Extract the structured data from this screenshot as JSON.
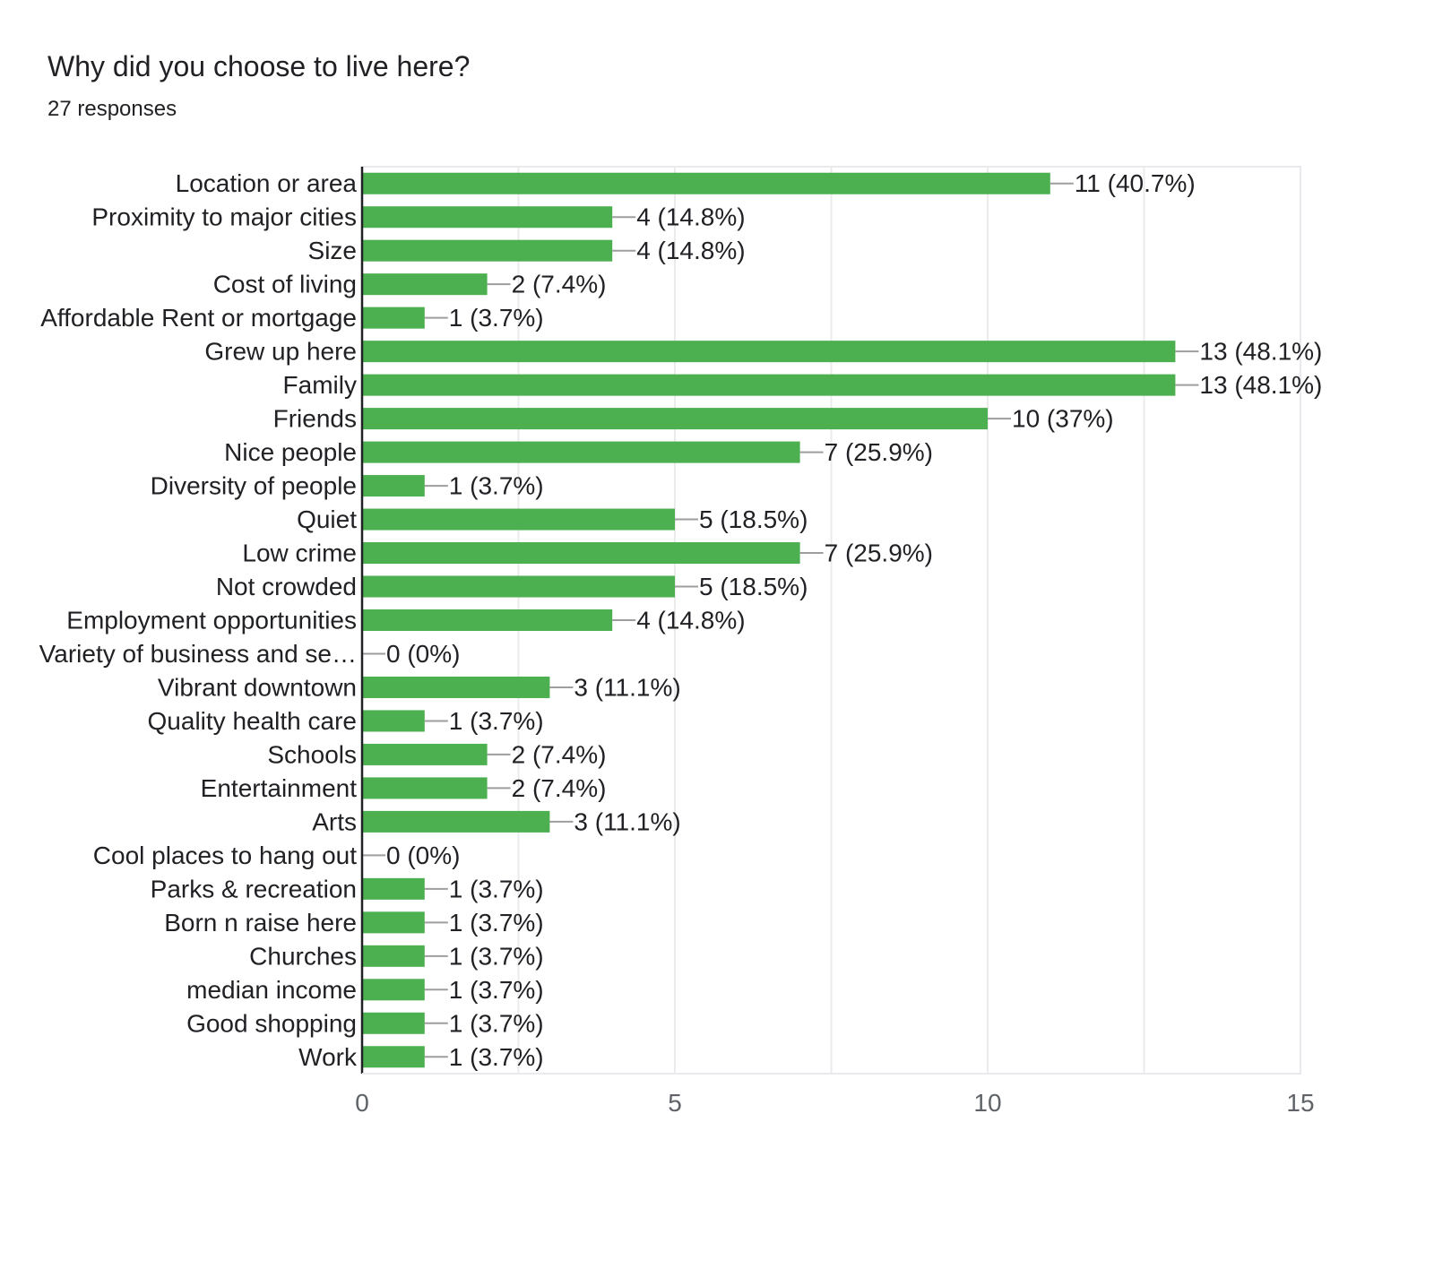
{
  "chart_data": {
    "type": "bar",
    "orientation": "horizontal",
    "title": "Why did you choose to live here?",
    "subtitle": "27 responses",
    "categories": [
      "Location or area",
      "Proximity to major cities",
      "Size",
      "Cost of living",
      "Affordable Rent or mortgage",
      "Grew up here",
      "Family",
      "Friends",
      "Nice people",
      "Diversity of people",
      "Quiet",
      "Low crime",
      "Not crowded",
      "Employment opportunities",
      "Variety of business and se…",
      "Vibrant downtown",
      "Quality health care",
      "Schools",
      "Entertainment",
      "Arts",
      "Cool places to hang out",
      "Parks & recreation",
      "Born n raise here",
      "Churches",
      "median income",
      "Good shopping",
      "Work"
    ],
    "values": [
      11,
      4,
      4,
      2,
      1,
      13,
      13,
      10,
      7,
      1,
      5,
      7,
      5,
      4,
      0,
      3,
      1,
      2,
      2,
      3,
      0,
      1,
      1,
      1,
      1,
      1,
      1
    ],
    "data_labels": [
      "11 (40.7%)",
      "4 (14.8%)",
      "4 (14.8%)",
      "2 (7.4%)",
      "1 (3.7%)",
      "13 (48.1%)",
      "13 (48.1%)",
      "10 (37%)",
      "7 (25.9%)",
      "1 (3.7%)",
      "5 (18.5%)",
      "7 (25.9%)",
      "5 (18.5%)",
      "4 (14.8%)",
      "0 (0%)",
      "3 (11.1%)",
      "1 (3.7%)",
      "2 (7.4%)",
      "2 (7.4%)",
      "3 (11.1%)",
      "0 (0%)",
      "1 (3.7%)",
      "1 (3.7%)",
      "1 (3.7%)",
      "1 (3.7%)",
      "1 (3.7%)",
      "1 (3.7%)"
    ],
    "xlim": [
      0,
      15
    ],
    "x_ticks": [
      "0",
      "5",
      "10",
      "15"
    ],
    "grid": true,
    "bar_color": "#4caf50"
  }
}
